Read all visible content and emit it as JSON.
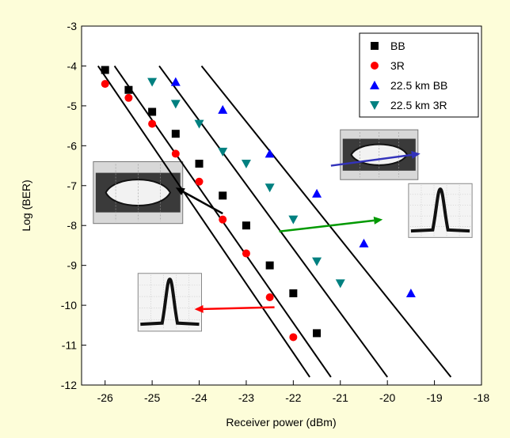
{
  "chart_data": {
    "type": "scatter",
    "xlabel": "Receiver power (dBm)",
    "ylabel": "Log (BER)",
    "xlim": [
      -26.5,
      -18
    ],
    "ylim": [
      -12,
      -3
    ],
    "xticks": [
      "-26",
      "-25",
      "-24",
      "-23",
      "-22",
      "-21",
      "-20",
      "-19",
      "-18"
    ],
    "yticks": [
      "-3",
      "-4",
      "-5",
      "-6",
      "-7",
      "-8",
      "-9",
      "-10",
      "-11",
      "-12"
    ],
    "legend_position": "top-right",
    "grid": false,
    "series": [
      {
        "name": "BB",
        "marker": "square",
        "color": "#000000",
        "x": [
          -26,
          -25.5,
          -25,
          -24.5,
          -24,
          -23.5,
          -23,
          -22.5,
          -22,
          -21.5
        ],
        "y": [
          -4.1,
          -4.6,
          -5.15,
          -5.7,
          -6.45,
          -7.25,
          -8.0,
          -9.0,
          -9.7,
          -10.7
        ]
      },
      {
        "name": "3R",
        "marker": "circle",
        "color": "#ff0000",
        "x": [
          -26,
          -25.5,
          -25,
          -24.5,
          -24,
          -23.5,
          -23,
          -22.5,
          -22
        ],
        "y": [
          -4.45,
          -4.8,
          -5.45,
          -6.2,
          -6.9,
          -7.85,
          -8.7,
          -9.8,
          -10.8
        ]
      },
      {
        "name": "22.5 km BB",
        "marker": "triangle-up",
        "color": "#0000ff",
        "x": [
          -24.5,
          -23.5,
          -22.5,
          -21.5,
          -20.5,
          -19.5
        ],
        "y": [
          -4.4,
          -5.1,
          -6.2,
          -7.2,
          -8.45,
          -9.7
        ]
      },
      {
        "name": "22.5 km 3R",
        "marker": "triangle-down",
        "color": "#008080",
        "x": [
          -25,
          -24.5,
          -24,
          -23.5,
          -23,
          -22.5,
          -22,
          -21.5,
          -21
        ],
        "y": [
          -4.4,
          -4.95,
          -5.45,
          -6.15,
          -6.45,
          -7.05,
          -7.85,
          -8.9,
          -9.45
        ]
      }
    ],
    "fit_lines": [
      {
        "x": [
          -26.15,
          -21.65
        ],
        "y": [
          -4.0,
          -11.8
        ]
      },
      {
        "x": [
          -25.8,
          -21.2
        ],
        "y": [
          -4.0,
          -11.8
        ]
      },
      {
        "x": [
          -24.85,
          -20.0
        ],
        "y": [
          -4.0,
          -11.8
        ]
      },
      {
        "x": [
          -23.95,
          -18.65
        ],
        "y": [
          -4.0,
          -11.8
        ]
      }
    ],
    "arrows": [
      {
        "color": "#3333bb",
        "from": [
          -21.2,
          -6.5
        ],
        "to": [
          -19.3,
          -6.2
        ]
      },
      {
        "color": "#000000",
        "from": [
          -23.5,
          -7.7
        ],
        "to": [
          -24.5,
          -7.05
        ]
      },
      {
        "color": "#009900",
        "from": [
          -22.3,
          -8.15
        ],
        "to": [
          -20.1,
          -7.85
        ]
      },
      {
        "color": "#ff0000",
        "from": [
          -22.4,
          -10.05
        ],
        "to": [
          -24.1,
          -10.1
        ]
      }
    ],
    "insets": [
      {
        "kind": "eye-diagram",
        "anchor": [
          -21.0,
          -5.6
        ],
        "w_data": 1.65,
        "h_data": 1.25
      },
      {
        "kind": "eye-diagram",
        "anchor": [
          -26.25,
          -6.4
        ],
        "w_data": 1.9,
        "h_data": 1.55
      },
      {
        "kind": "pulse",
        "anchor": [
          -19.55,
          -6.95
        ],
        "w_data": 1.35,
        "h_data": 1.35
      },
      {
        "kind": "pulse",
        "anchor": [
          -25.3,
          -9.2
        ],
        "w_data": 1.35,
        "h_data": 1.45
      }
    ]
  }
}
